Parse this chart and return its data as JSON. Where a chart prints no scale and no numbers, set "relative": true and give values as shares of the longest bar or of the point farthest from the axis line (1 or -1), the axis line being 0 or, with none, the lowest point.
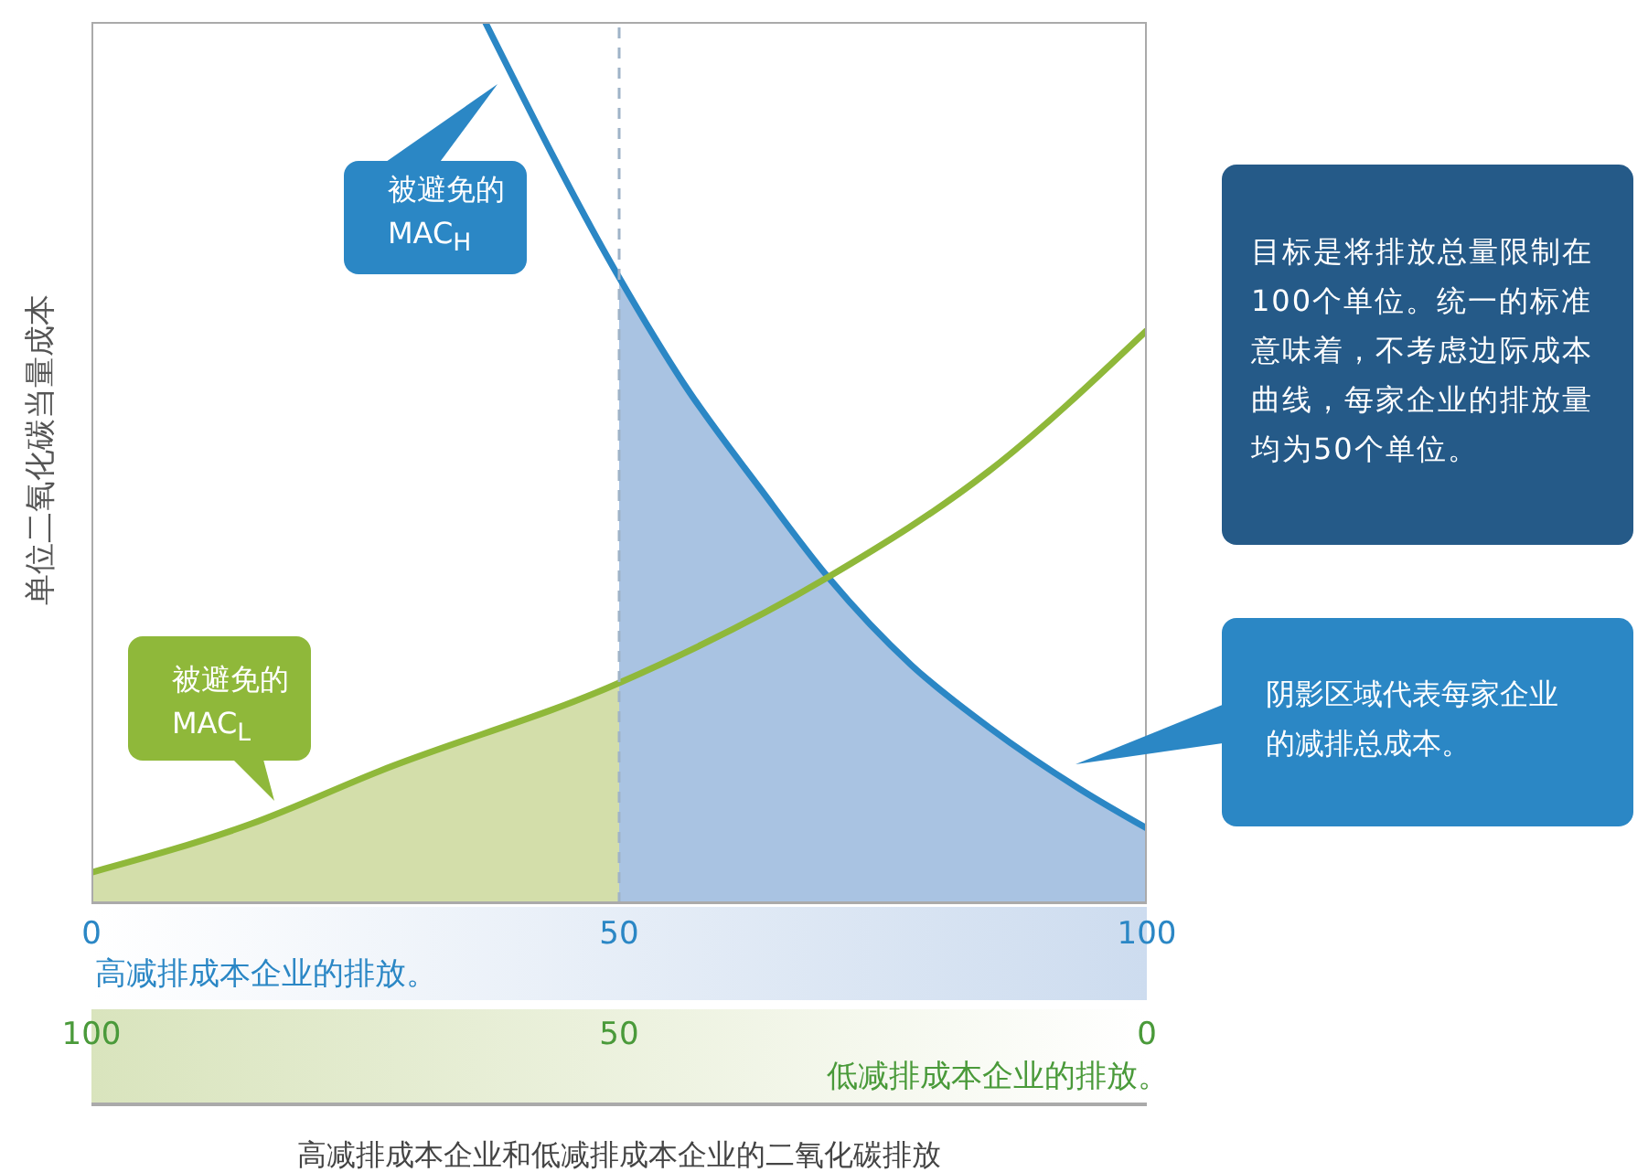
{
  "chart_data": {
    "type": "line",
    "relative": true,
    "ylabel": "单位二氧化碳当量成本",
    "xlabel": "高减排成本企业的排放。",
    "x2label": "低减排成本企业的排放。",
    "xlim": [
      0,
      100
    ],
    "xticks": [
      0,
      50,
      100
    ],
    "x2lim": [
      100,
      0
    ],
    "x2ticks": [
      100,
      50,
      0
    ],
    "marker": "none",
    "series": [
      {
        "type": "area",
        "color": "#d3deaa",
        "x": [
          0,
          15.1,
          27.3,
          50
        ],
        "values": [
          0.035,
          0.09,
          0.15,
          0.25
        ]
      },
      {
        "type": "area",
        "color": "#a9c3e2",
        "x": [
          50,
          56.1,
          63.4,
          69.8,
          77.7,
          85,
          93.6,
          100
        ],
        "values": [
          0.71,
          0.59,
          0.47,
          0.37,
          0.27,
          0.2,
          0.13,
          0.085
        ]
      },
      {
        "name": "被避免的MAC$_{H}$",
        "color": "#2b87c5",
        "x": [
          37.3,
          50,
          56.1,
          63.4,
          69.8,
          77.7,
          85,
          93.6,
          100
        ],
        "values": [
          1,
          0.71,
          0.59,
          0.47,
          0.37,
          0.27,
          0.2,
          0.13,
          0.085
        ]
      },
      {
        "name": "被避免的MAC$_{L}$",
        "color": "#8fb83a",
        "x": [
          0,
          15.1,
          27.3,
          50,
          69.8,
          85,
          100
        ],
        "values": [
          0.035,
          0.09,
          0.15,
          0.25,
          0.37,
          0.49,
          0.65
        ]
      }
    ],
    "ref_lines": [
      {
        "axis": "x",
        "value": 50,
        "color": "#9fb3c8",
        "line_style": "dashed"
      }
    ],
    "annotations": [
      "目标是将排放总量限制在100个单位。统一的标准意味着，不考虑边际成本曲线，每家企业的排放量均为50个单位。",
      "阴影区域代表每家企业的减排总成本。",
      "高减排成本企业和低减排成本企业的二氧化碳排放"
    ]
  }
}
